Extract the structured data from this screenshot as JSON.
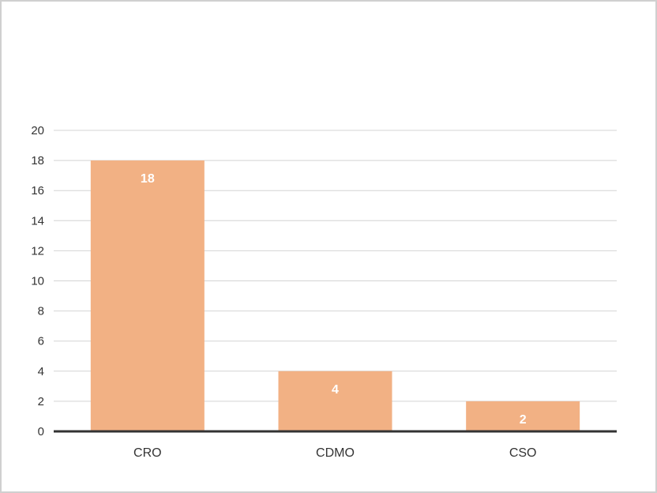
{
  "chart_data": {
    "type": "bar",
    "categories": [
      "CRO",
      "CDMO",
      "CSO"
    ],
    "values": [
      18,
      4,
      2
    ],
    "data_labels": [
      "18",
      "4",
      "2"
    ],
    "yticks": [
      "0",
      "2",
      "4",
      "6",
      "8",
      "10",
      "12",
      "14",
      "16",
      "18",
      "20"
    ],
    "ylim": [
      0,
      20
    ],
    "grid": true,
    "legend": "none",
    "bar_color": "#f2b184",
    "grid_color": "#d4d4d4",
    "baseline_color": "#333333",
    "title": "",
    "xlabel": "",
    "ylabel": ""
  }
}
